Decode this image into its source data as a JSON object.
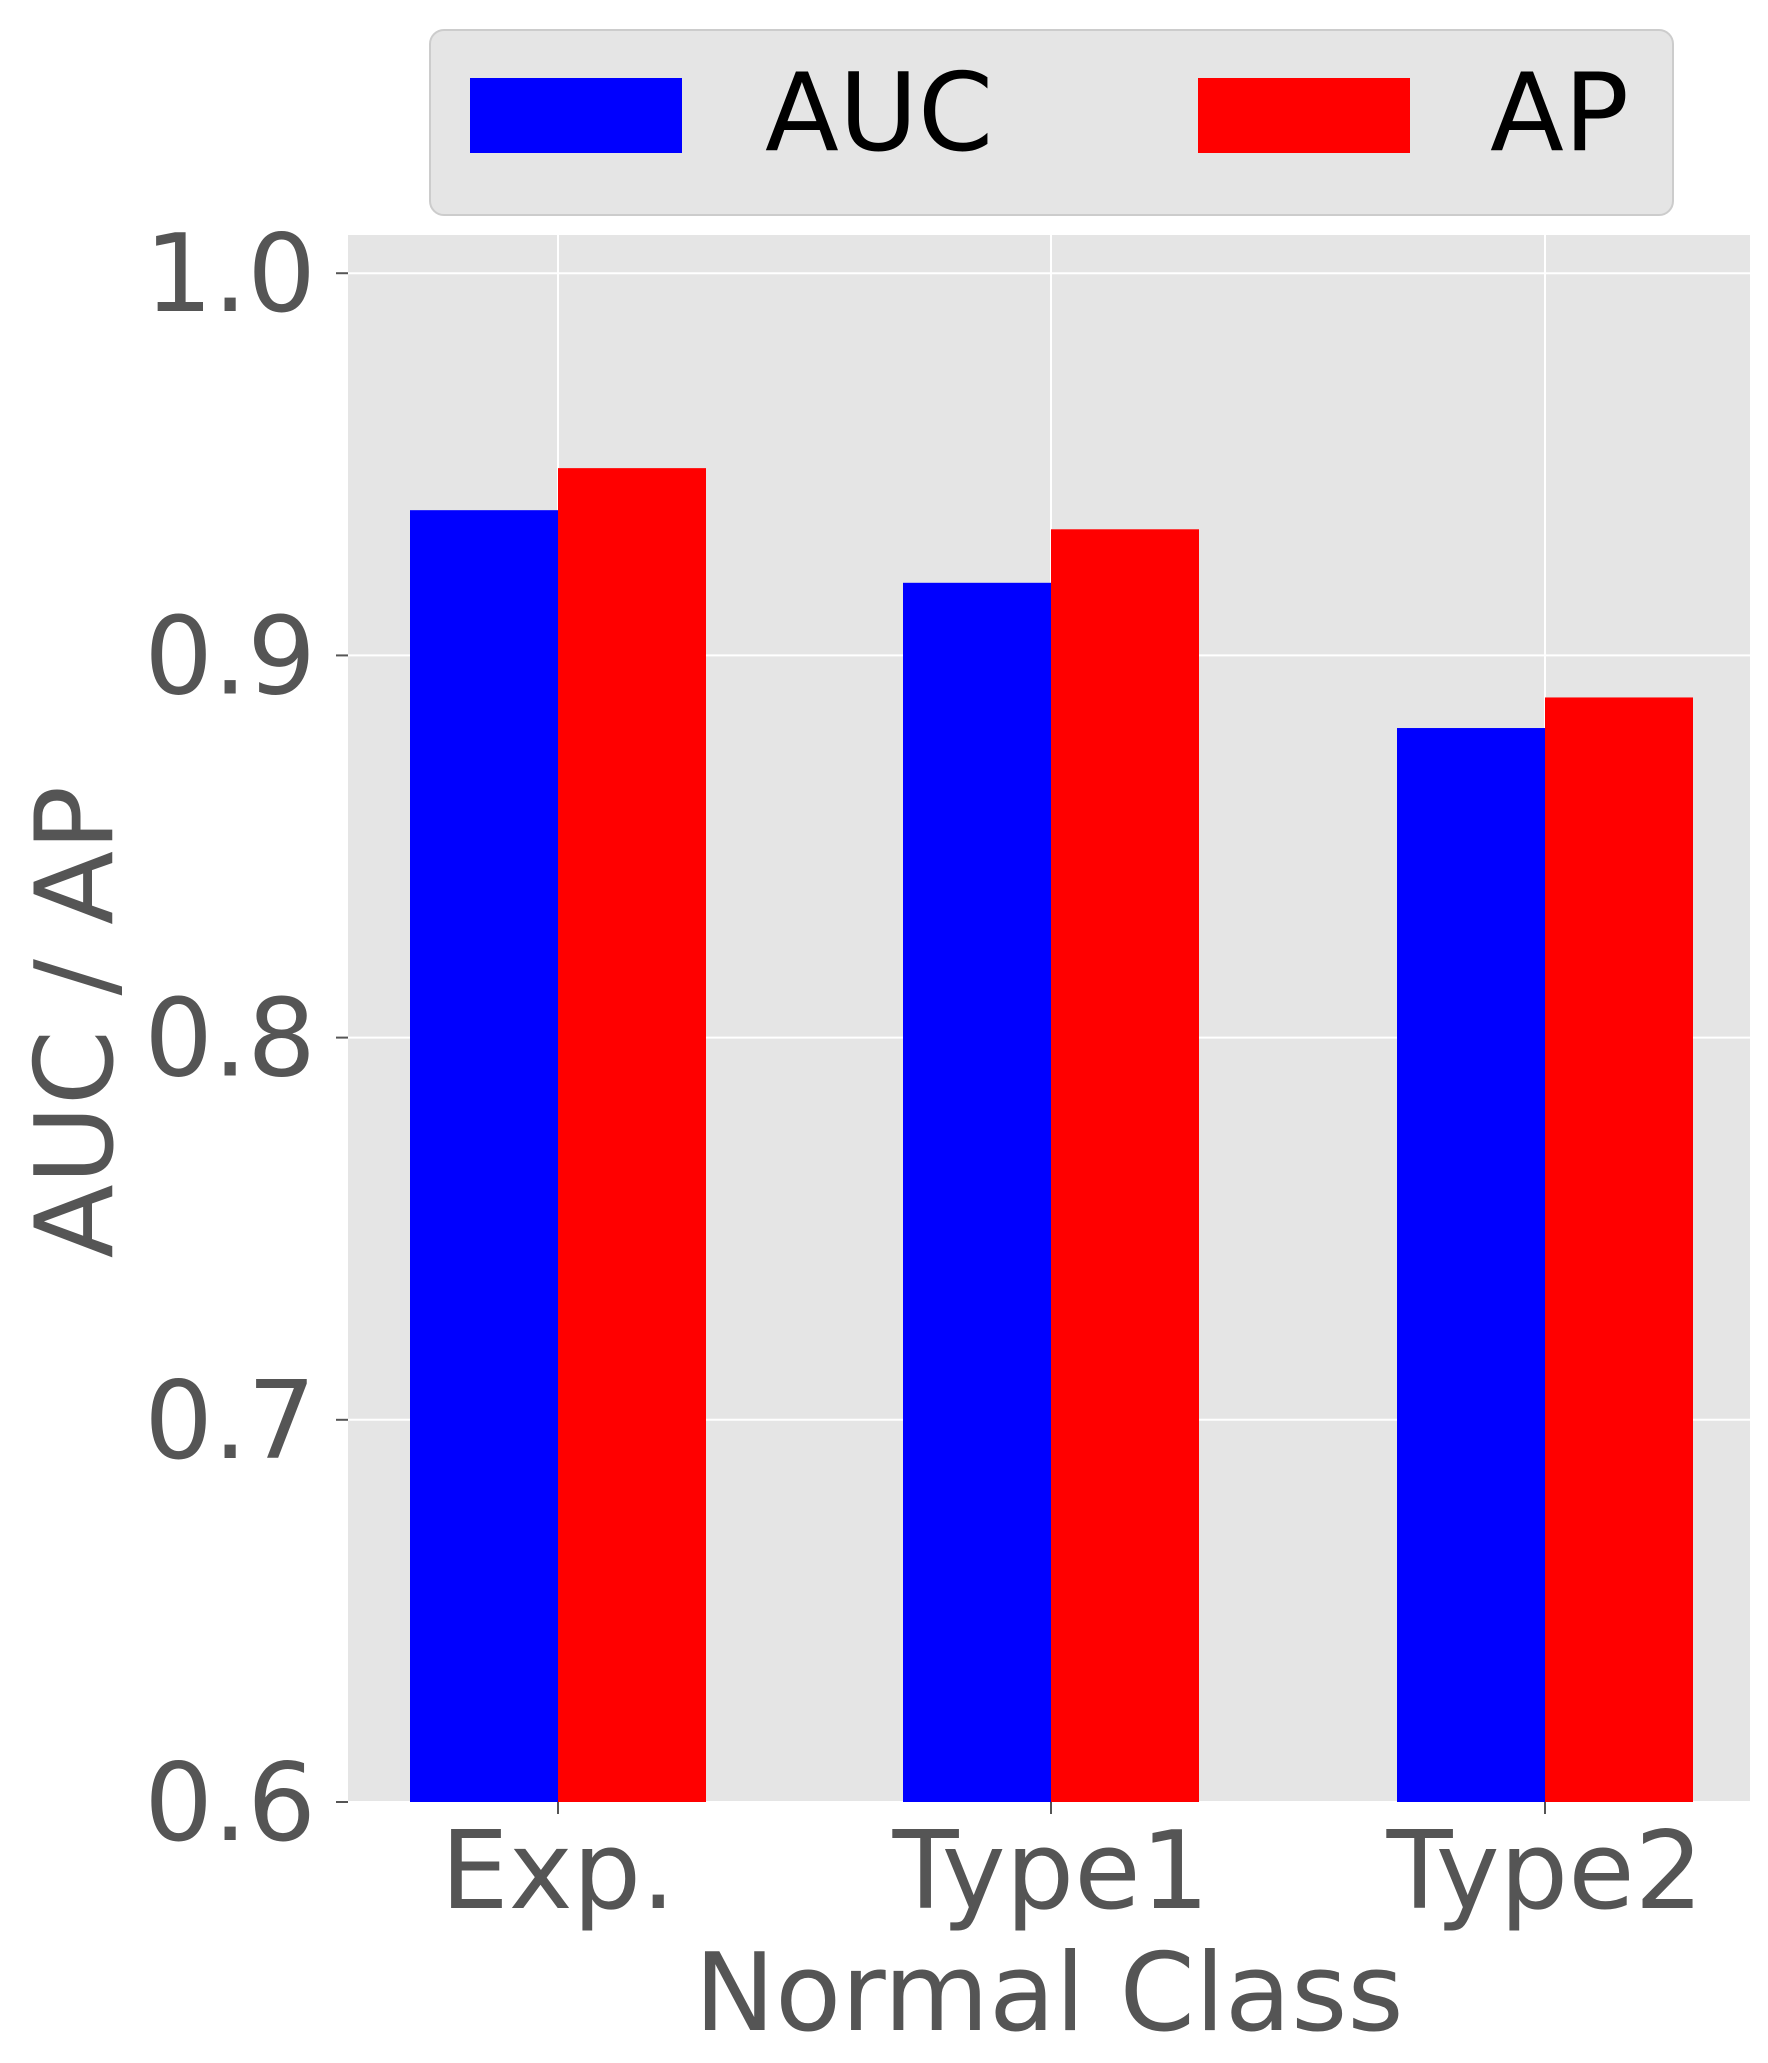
{
  "chart_data": {
    "type": "bar",
    "xlabel": "Normal Class",
    "ylabel": "AUC / AP",
    "categories": [
      "Exp.",
      "Type1",
      "Type2"
    ],
    "series": [
      {
        "name": "AUC",
        "color": "#0000ff",
        "values": [
          0.938,
          0.919,
          0.881
        ]
      },
      {
        "name": "AP",
        "color": "#ff0000",
        "values": [
          0.949,
          0.933,
          0.889
        ]
      }
    ],
    "ylim": [
      0.6,
      1.01
    ],
    "yticks": [
      "0.6",
      "0.7",
      "0.8",
      "0.9",
      "1.0"
    ],
    "grid": true,
    "legend_position": "top",
    "style": {
      "plot_background": "#e5e5e5",
      "grid_color": "#ffffff",
      "text_color": "#555555",
      "legend_background": "#e5e5e5"
    }
  }
}
